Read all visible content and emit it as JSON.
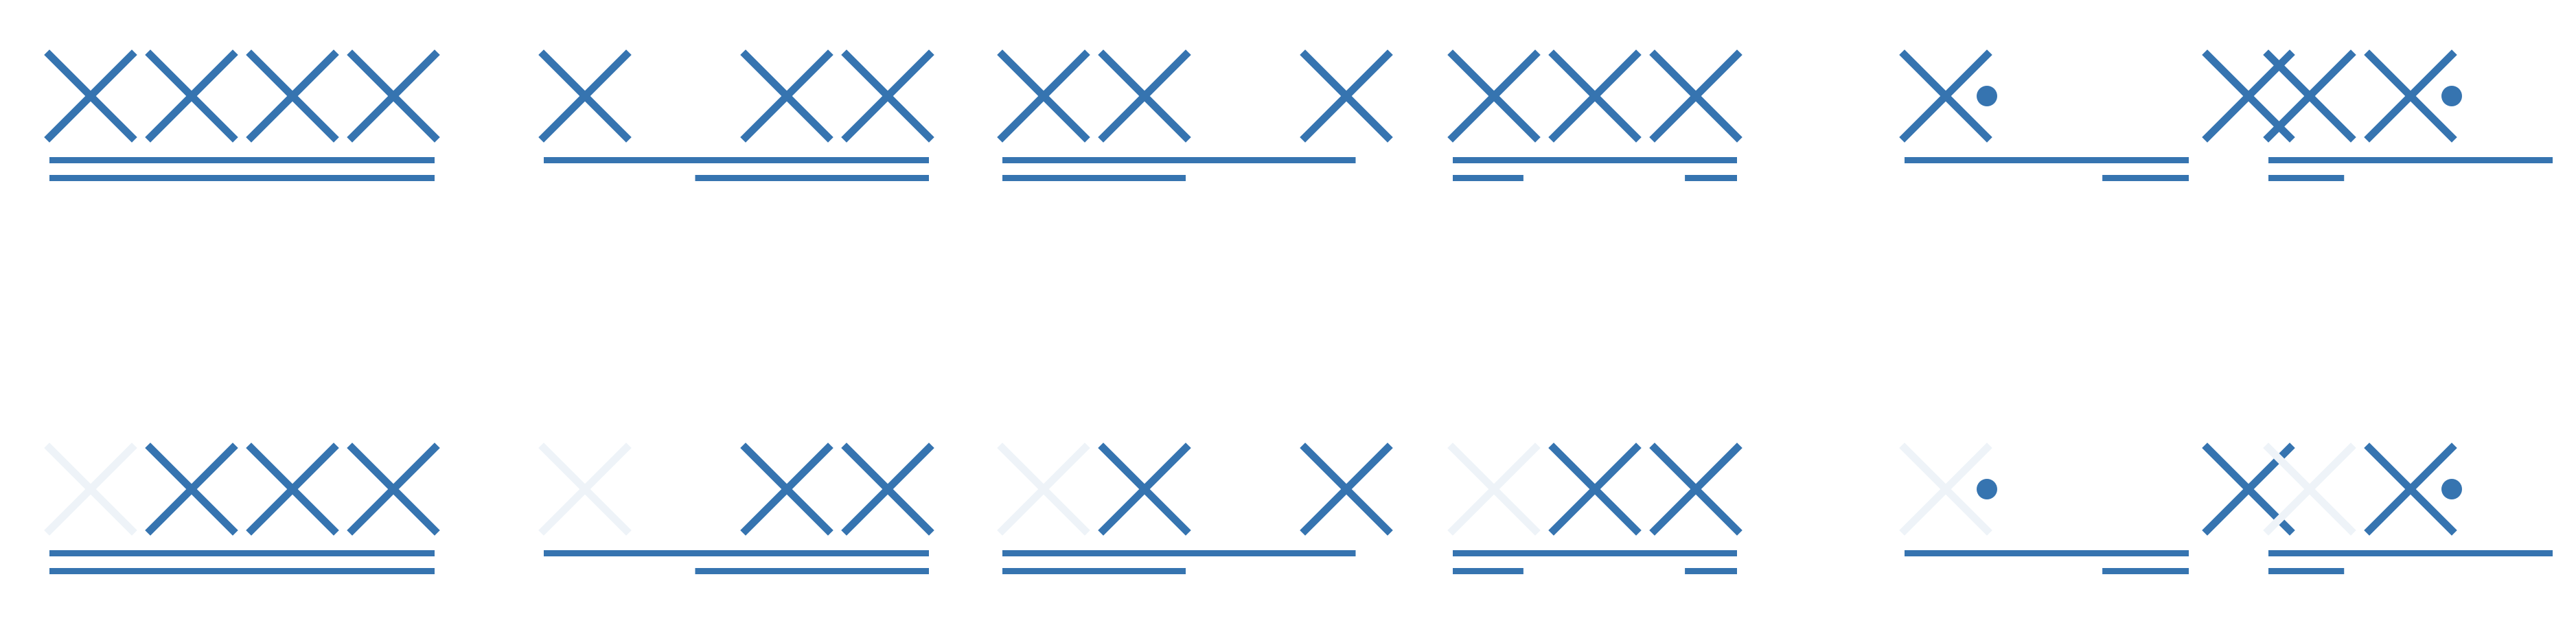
{
  "colors": {
    "mark": "#3674B0",
    "faded": "#EEF3F8",
    "background": "#FFFFFF"
  },
  "legend": {},
  "rows": [
    {
      "faded_first": false,
      "panels": [
        {
          "glyphs": [
            "x",
            "x",
            "x",
            "x"
          ],
          "bars": [
            [
              0,
              4
            ],
            [
              0,
              4
            ]
          ]
        },
        {
          "glyphs": [
            "x",
            "_",
            "x",
            "x"
          ],
          "bars": [
            [
              0,
              4
            ],
            [
              1.5,
              4
            ]
          ]
        },
        {
          "glyphs": [
            "x",
            "x",
            "_",
            "x"
          ],
          "bars": [
            [
              0,
              3.5
            ],
            [
              0,
              2
            ]
          ]
        },
        {
          "glyphs": [
            "x",
            "x",
            "x"
          ],
          "bars": [
            [
              0,
              3
            ],
            [
              0,
              0.7
            ],
            [
              2.3,
              3
            ]
          ]
        },
        {
          "glyphs": [
            "x",
            "dot",
            "_",
            "x"
          ],
          "bars": [
            [
              0,
              3
            ],
            [
              1.96,
              3
            ]
          ]
        },
        {
          "glyphs": [
            "x",
            "x",
            "dot"
          ],
          "bars": [
            [
              0,
              3
            ],
            [
              0,
              0.75
            ]
          ]
        }
      ]
    },
    {
      "faded_first": true,
      "panels": [
        {
          "glyphs": [
            "x",
            "x",
            "x",
            "x"
          ],
          "bars": [
            [
              0,
              4
            ],
            [
              0,
              4
            ]
          ]
        },
        {
          "glyphs": [
            "x",
            "_",
            "x",
            "x"
          ],
          "bars": [
            [
              0,
              4
            ],
            [
              1.5,
              4
            ]
          ]
        },
        {
          "glyphs": [
            "x",
            "x",
            "_",
            "x"
          ],
          "bars": [
            [
              0,
              3.5
            ],
            [
              0,
              2
            ]
          ]
        },
        {
          "glyphs": [
            "x",
            "x",
            "x"
          ],
          "bars": [
            [
              0,
              3
            ],
            [
              0,
              0.7
            ],
            [
              2.3,
              3
            ]
          ]
        },
        {
          "glyphs": [
            "x",
            "dot",
            "_",
            "x"
          ],
          "bars": [
            [
              0,
              3
            ],
            [
              1.96,
              3
            ]
          ]
        },
        {
          "glyphs": [
            "x",
            "x",
            "dot"
          ],
          "bars": [
            [
              0,
              3
            ],
            [
              0,
              0.75
            ]
          ]
        }
      ]
    }
  ]
}
